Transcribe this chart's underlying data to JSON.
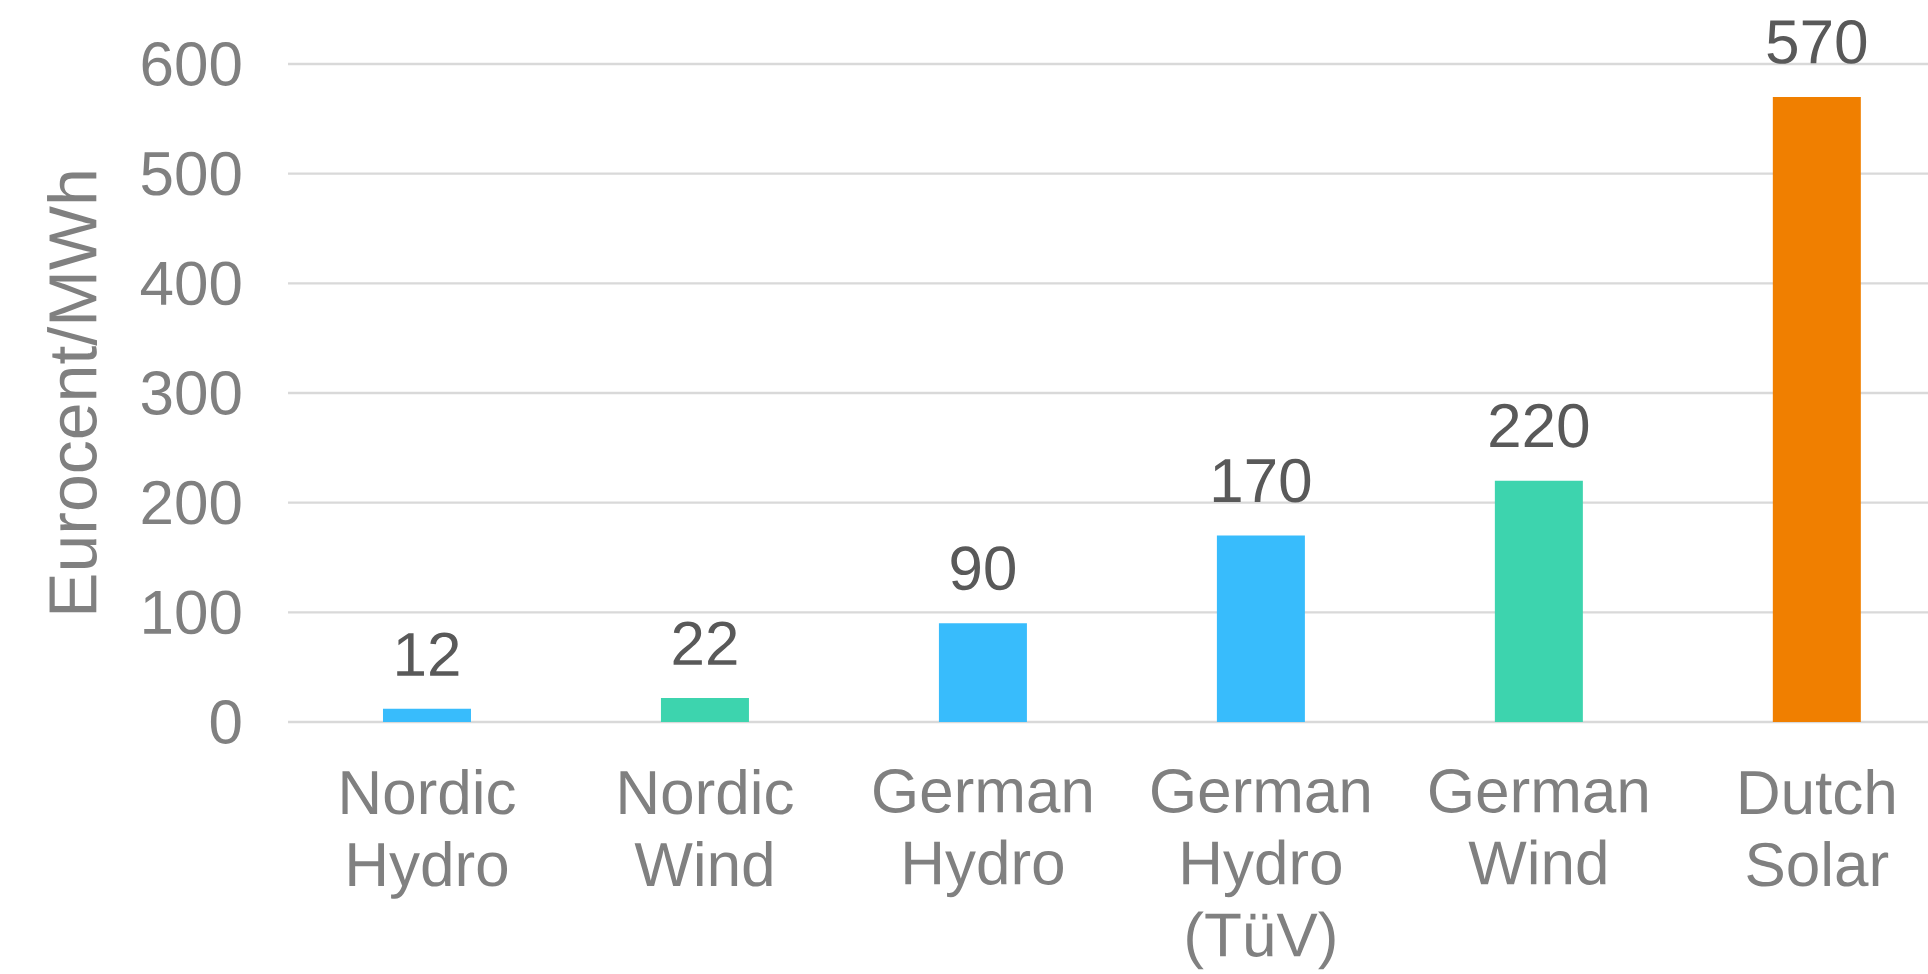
{
  "chart_data": {
    "type": "bar",
    "ylabel": "Eurocent/MWh",
    "categories": [
      "Nordic Hydro",
      "Nordic Wind",
      "German Hydro",
      "German Hydro (TüV)",
      "German Wind",
      "Dutch Solar"
    ],
    "values": [
      12,
      22,
      90,
      170,
      220,
      570
    ],
    "colors": [
      "#38bcfc",
      "#3dd4ae",
      "#38bcfc",
      "#38bcfc",
      "#3dd4ae",
      "#f07f00"
    ],
    "ylim": [
      0,
      600
    ],
    "yticks": [
      0,
      100,
      200,
      300,
      400,
      500,
      600
    ],
    "grid": "y",
    "data_labels": true
  }
}
